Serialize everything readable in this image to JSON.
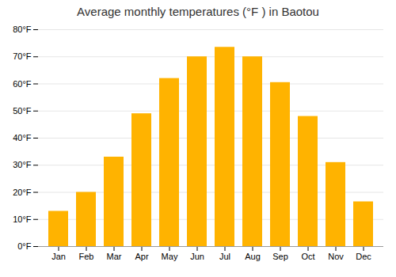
{
  "chart_data": {
    "type": "bar",
    "title": "Average monthly temperatures (°F ) in Baotou",
    "categories": [
      "Jan",
      "Feb",
      "Mar",
      "Apr",
      "May",
      "Jun",
      "Jul",
      "Aug",
      "Sep",
      "Oct",
      "Nov",
      "Dec"
    ],
    "values": [
      13,
      20,
      33,
      49,
      62,
      70,
      73.5,
      70,
      60.5,
      48,
      31,
      16.5
    ],
    "color": "#FFB300",
    "ylim": [
      0,
      80
    ],
    "yticks": [
      {
        "value": 0,
        "label": "0°F"
      },
      {
        "value": 10,
        "label": "10°F"
      },
      {
        "value": 20,
        "label": "20°F"
      },
      {
        "value": 30,
        "label": "30°F"
      },
      {
        "value": 40,
        "label": "40°F"
      },
      {
        "value": 50,
        "label": "50°F"
      },
      {
        "value": 60,
        "label": "60°F"
      },
      {
        "value": 70,
        "label": "70°F"
      },
      {
        "value": 80,
        "label": "80°F"
      }
    ],
    "grid": true
  }
}
